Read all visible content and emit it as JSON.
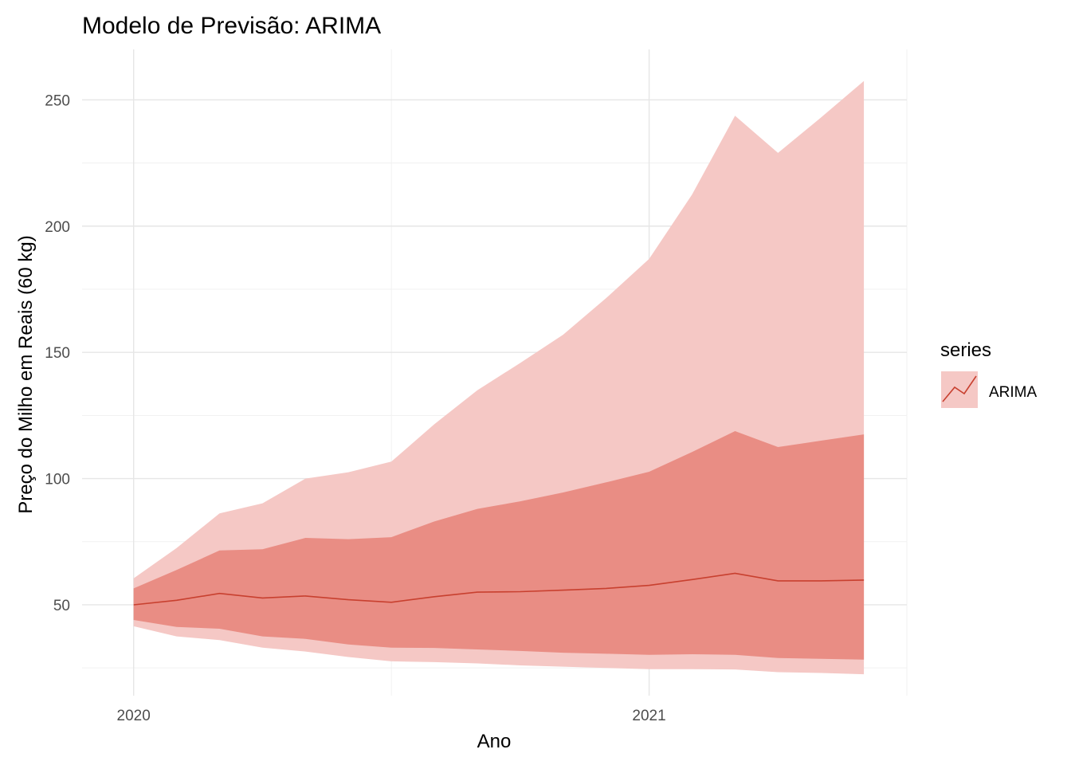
{
  "chart_data": {
    "type": "area",
    "title": "Modelo de Previsão: ARIMA",
    "xlabel": "Ano",
    "ylabel": "Preço do Milho em Reais (60 kg)",
    "xlim": [
      2019.9,
      2021.5
    ],
    "ylim": [
      14,
      270
    ],
    "x_ticks": [
      2020,
      2021
    ],
    "x_tick_labels": [
      "2020",
      "2021"
    ],
    "y_ticks": [
      50,
      100,
      150,
      200,
      250
    ],
    "y_tick_labels": [
      "50",
      "100",
      "150",
      "200",
      "250"
    ],
    "grid": true,
    "legend": {
      "title": "series",
      "position": "right",
      "entries": [
        "ARIMA"
      ]
    },
    "colors": {
      "line": "#c8402f",
      "band80": "#e98d84",
      "band95": "#f5c8c5"
    },
    "series": [
      {
        "name": "ARIMA",
        "x": [
          2020.0,
          2020.0833,
          2020.1667,
          2020.25,
          2020.3333,
          2020.4167,
          2020.5,
          2020.5833,
          2020.6667,
          2020.75,
          2020.8333,
          2020.9167,
          2021.0,
          2021.0833,
          2021.1667,
          2021.25,
          2021.3333,
          2021.4167
        ],
        "mean": [
          50.0,
          51.8,
          54.5,
          52.7,
          53.5,
          52.0,
          51.0,
          53.2,
          55.0,
          55.2,
          55.8,
          56.5,
          57.7,
          60.0,
          62.5,
          59.5,
          59.5,
          59.8
        ],
        "lower_80": [
          44.0,
          41.2,
          40.5,
          37.5,
          36.5,
          34.3,
          33.0,
          32.9,
          32.3,
          31.7,
          31.0,
          30.6,
          30.2,
          30.4,
          30.2,
          28.9,
          28.6,
          28.3
        ],
        "upper_80": [
          56.5,
          63.8,
          71.5,
          72.0,
          76.5,
          76.0,
          76.8,
          83.0,
          88.0,
          91.0,
          94.5,
          98.5,
          102.7,
          110.5,
          118.8,
          112.5,
          115.0,
          117.5
        ],
        "lower_95": [
          41.5,
          37.5,
          36.0,
          33.0,
          31.5,
          29.3,
          27.6,
          27.3,
          26.8,
          26.0,
          25.5,
          25.0,
          24.5,
          24.5,
          24.4,
          23.3,
          23.0,
          22.5
        ],
        "upper_95": [
          60.5,
          72.5,
          86.2,
          90.2,
          100.0,
          102.5,
          106.7,
          121.5,
          135.0,
          145.8,
          157.0,
          171.5,
          187.0,
          212.5,
          243.7,
          229.0,
          243.0,
          257.5
        ]
      }
    ]
  }
}
